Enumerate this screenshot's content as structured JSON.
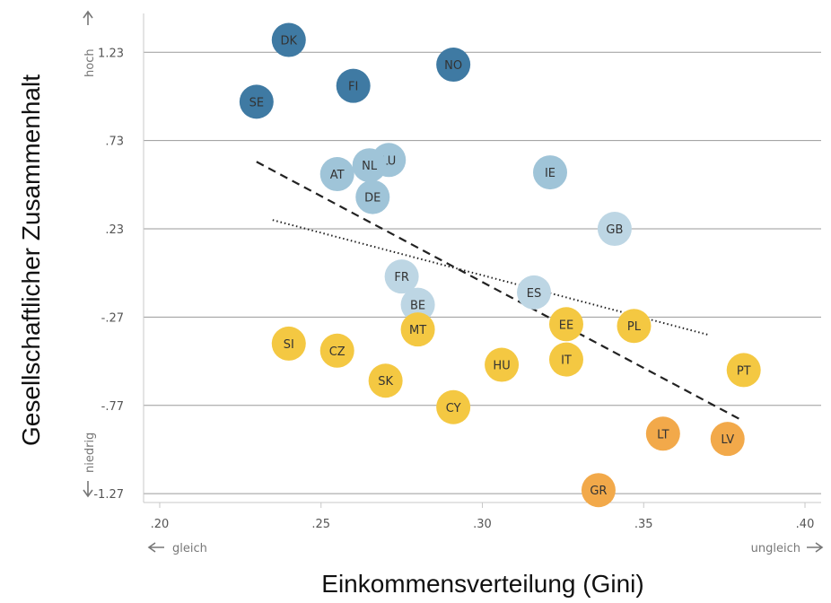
{
  "chart_data": {
    "type": "scatter",
    "ylabel": "Gesellschaftlicher Zusammenhalt",
    "xlabel": "Einkommensverteilung (Gini)",
    "xlim": [
      0.195,
      0.405
    ],
    "ylim": [
      -1.32,
      1.45
    ],
    "x_ticks": [
      {
        "value": 0.2,
        "label": ".20"
      },
      {
        "value": 0.25,
        "label": ".25"
      },
      {
        "value": 0.3,
        "label": ".30"
      },
      {
        "value": 0.35,
        "label": ".35"
      },
      {
        "value": 0.4,
        "label": ".40"
      }
    ],
    "y_ticks": [
      {
        "value": 1.23,
        "label": "1.23"
      },
      {
        "value": 0.73,
        "label": ".73"
      },
      {
        "value": 0.23,
        "label": ".23"
      },
      {
        "value": -0.27,
        "label": "-.27"
      },
      {
        "value": -0.77,
        "label": "-.77"
      },
      {
        "value": -1.27,
        "label": "-1.27"
      }
    ],
    "grid": "horizontal",
    "annotations": {
      "y_high": "hoch",
      "y_low": "niedrig",
      "x_low": "gleich",
      "x_high": "ungleich"
    },
    "points": [
      {
        "label": "DK",
        "x": 0.24,
        "y": 1.3,
        "color": "#3f7aa3"
      },
      {
        "label": "NO",
        "x": 0.291,
        "y": 1.16,
        "color": "#3f7aa3"
      },
      {
        "label": "FI",
        "x": 0.26,
        "y": 1.04,
        "color": "#3f7aa3"
      },
      {
        "label": "SE",
        "x": 0.23,
        "y": 0.95,
        "color": "#3f7aa3"
      },
      {
        "label": "LU",
        "x": 0.271,
        "y": 0.62,
        "color": "#9fc4d8"
      },
      {
        "label": "NL",
        "x": 0.265,
        "y": 0.59,
        "color": "#9fc4d8"
      },
      {
        "label": "AT",
        "x": 0.255,
        "y": 0.54,
        "color": "#9fc4d8"
      },
      {
        "label": "DE",
        "x": 0.266,
        "y": 0.41,
        "color": "#9fc4d8"
      },
      {
        "label": "IE",
        "x": 0.321,
        "y": 0.55,
        "color": "#9fc4d8"
      },
      {
        "label": "GB",
        "x": 0.341,
        "y": 0.23,
        "color": "#bdd6e4"
      },
      {
        "label": "FR",
        "x": 0.275,
        "y": -0.04,
        "color": "#bdd6e4"
      },
      {
        "label": "ES",
        "x": 0.316,
        "y": -0.13,
        "color": "#bdd6e4"
      },
      {
        "label": "BE",
        "x": 0.28,
        "y": -0.2,
        "color": "#bdd6e4"
      },
      {
        "label": "MT",
        "x": 0.28,
        "y": -0.34,
        "color": "#f4c842"
      },
      {
        "label": "EE",
        "x": 0.326,
        "y": -0.31,
        "color": "#f4c842"
      },
      {
        "label": "PL",
        "x": 0.347,
        "y": -0.32,
        "color": "#f4c842"
      },
      {
        "label": "SI",
        "x": 0.24,
        "y": -0.42,
        "color": "#f4c842"
      },
      {
        "label": "CZ",
        "x": 0.255,
        "y": -0.46,
        "color": "#f4c842"
      },
      {
        "label": "IT",
        "x": 0.326,
        "y": -0.51,
        "color": "#f4c842"
      },
      {
        "label": "HU",
        "x": 0.306,
        "y": -0.54,
        "color": "#f4c842"
      },
      {
        "label": "PT",
        "x": 0.381,
        "y": -0.57,
        "color": "#f4c842"
      },
      {
        "label": "SK",
        "x": 0.27,
        "y": -0.63,
        "color": "#f4c842"
      },
      {
        "label": "CY",
        "x": 0.291,
        "y": -0.78,
        "color": "#f4c842"
      },
      {
        "label": "LT",
        "x": 0.356,
        "y": -0.93,
        "color": "#f2a94a"
      },
      {
        "label": "LV",
        "x": 0.376,
        "y": -0.96,
        "color": "#f2a94a"
      },
      {
        "label": "GR",
        "x": 0.336,
        "y": -1.25,
        "color": "#f2a94a"
      }
    ],
    "trend_lines": [
      {
        "style": "dashed",
        "x": [
          0.23,
          0.38
        ],
        "y": [
          0.61,
          -0.85
        ]
      },
      {
        "style": "dotted",
        "x": [
          0.235,
          0.37
        ],
        "y": [
          0.28,
          -0.37
        ]
      }
    ]
  }
}
